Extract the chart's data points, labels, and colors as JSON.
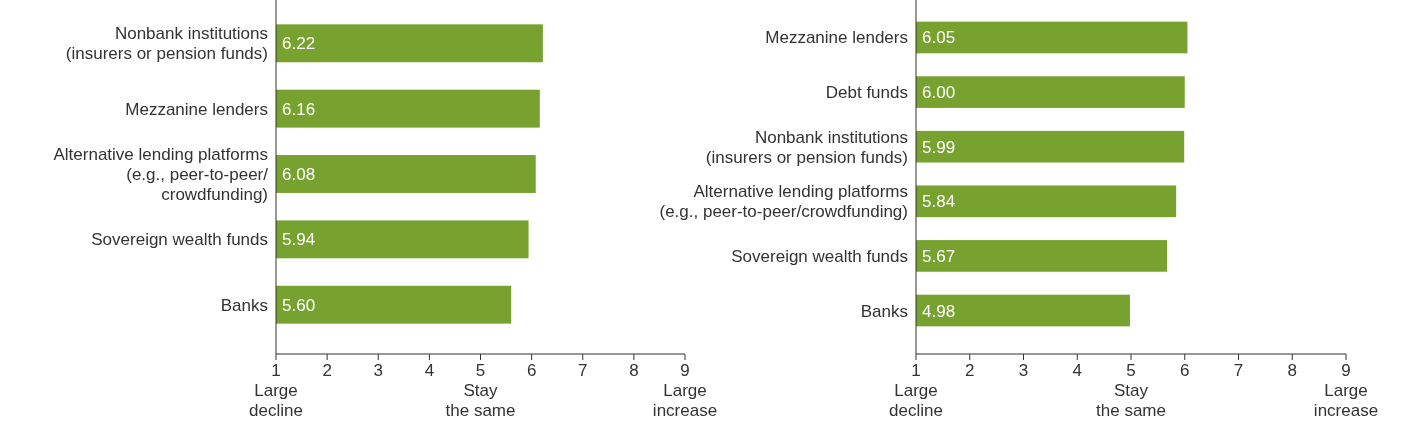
{
  "chart_data": [
    {
      "type": "bar",
      "orientation": "horizontal",
      "categories": [
        "Nonbank institutions\n(insurers or pension funds)",
        "Mezzanine lenders",
        "Alternative lending platforms\n(e.g., peer-to-peer/\ncrowdfunding)",
        "Sovereign wealth funds",
        "Banks"
      ],
      "values": [
        6.22,
        6.16,
        6.08,
        5.94,
        5.6
      ],
      "value_labels": [
        "6.22",
        "6.16",
        "6.08",
        "5.94",
        "5.60"
      ],
      "color": "#78a22f",
      "xlim": [
        1,
        9
      ],
      "xticks": [
        1,
        2,
        3,
        4,
        5,
        6,
        7,
        8,
        9
      ],
      "annotations": [
        "Large\ndecline",
        "Stay\nthe same",
        "Large\nincrease"
      ]
    },
    {
      "type": "bar",
      "orientation": "horizontal",
      "categories": [
        "Mezzanine lenders",
        "Debt funds",
        "Nonbank institutions\n(insurers or pension funds)",
        "Alternative lending platforms\n(e.g., peer-to-peer/crowdfunding)",
        "Sovereign wealth funds",
        "Banks"
      ],
      "values": [
        6.05,
        6.0,
        5.99,
        5.84,
        5.67,
        4.98
      ],
      "value_labels": [
        "6.05",
        "6.00",
        "5.99",
        "5.84",
        "5.67",
        "4.98"
      ],
      "color": "#78a22f",
      "xlim": [
        1,
        9
      ],
      "xticks": [
        1,
        2,
        3,
        4,
        5,
        6,
        7,
        8,
        9
      ],
      "annotations": [
        "Large\ndecline",
        "Stay\nthe same",
        "Large\nincrease"
      ]
    }
  ]
}
